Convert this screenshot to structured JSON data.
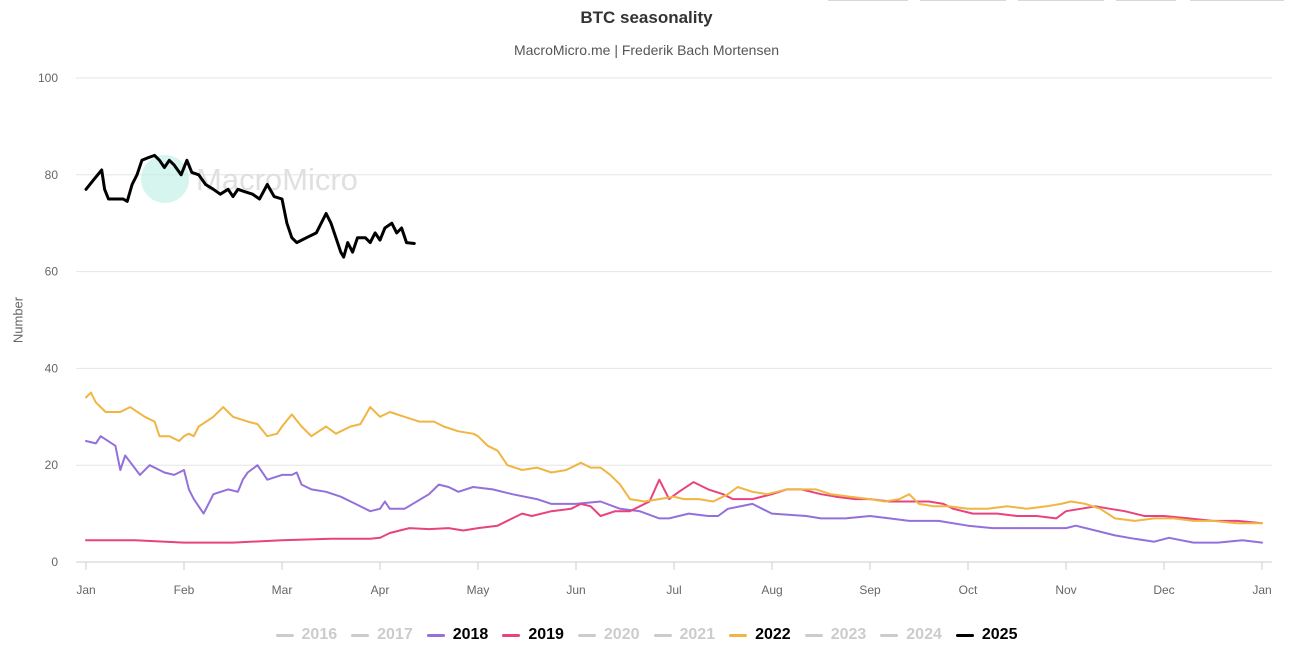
{
  "chart_data": {
    "type": "line",
    "title": "BTC seasonality",
    "subtitle": "MacroMicro.me | Frederik Bach Mortensen",
    "ylabel": "Number",
    "xlabel": "",
    "ylim": [
      0,
      100
    ],
    "yticks": [
      0,
      20,
      40,
      60,
      80,
      100
    ],
    "xticks": [
      "Jan",
      "Feb",
      "Mar",
      "Apr",
      "May",
      "Jun",
      "Jul",
      "Aug",
      "Sep",
      "Oct",
      "Nov",
      "Dec",
      "Jan"
    ],
    "x_domain_months": [
      1,
      13
    ],
    "grid": "horizontal",
    "legend_position": "bottom-center",
    "legend": [
      {
        "name": "2016",
        "color": "#cccccc",
        "active": false
      },
      {
        "name": "2017",
        "color": "#cccccc",
        "active": false
      },
      {
        "name": "2018",
        "color": "#9370db",
        "active": true
      },
      {
        "name": "2019",
        "color": "#e8437d",
        "active": true
      },
      {
        "name": "2020",
        "color": "#cccccc",
        "active": false
      },
      {
        "name": "2021",
        "color": "#cccccc",
        "active": false
      },
      {
        "name": "2022",
        "color": "#f0b542",
        "active": true
      },
      {
        "name": "2023",
        "color": "#cccccc",
        "active": false
      },
      {
        "name": "2024",
        "color": "#cccccc",
        "active": false
      },
      {
        "name": "2025",
        "color": "#000000",
        "active": true
      }
    ],
    "series": [
      {
        "name": "2018",
        "color": "#9370db",
        "width": 2,
        "points": [
          [
            1.0,
            25
          ],
          [
            1.1,
            24.5
          ],
          [
            1.15,
            26
          ],
          [
            1.3,
            24
          ],
          [
            1.35,
            19
          ],
          [
            1.4,
            22
          ],
          [
            1.55,
            18
          ],
          [
            1.65,
            20
          ],
          [
            1.8,
            18.5
          ],
          [
            1.9,
            18
          ],
          [
            2.0,
            19
          ],
          [
            2.05,
            15
          ],
          [
            2.1,
            13
          ],
          [
            2.2,
            10
          ],
          [
            2.3,
            14
          ],
          [
            2.45,
            15
          ],
          [
            2.55,
            14.5
          ],
          [
            2.6,
            17
          ],
          [
            2.65,
            18.5
          ],
          [
            2.75,
            20
          ],
          [
            2.85,
            17
          ],
          [
            3.0,
            18
          ],
          [
            3.1,
            18
          ],
          [
            3.15,
            18.5
          ],
          [
            3.2,
            16
          ],
          [
            3.3,
            15
          ],
          [
            3.45,
            14.5
          ],
          [
            3.6,
            13.5
          ],
          [
            3.75,
            12
          ],
          [
            3.9,
            10.5
          ],
          [
            4.0,
            11
          ],
          [
            4.05,
            12.5
          ],
          [
            4.1,
            11
          ],
          [
            4.25,
            11
          ],
          [
            4.5,
            14
          ],
          [
            4.6,
            16
          ],
          [
            4.7,
            15.5
          ],
          [
            4.8,
            14.5
          ],
          [
            4.95,
            15.5
          ],
          [
            5.15,
            15
          ],
          [
            5.35,
            14
          ],
          [
            5.6,
            13
          ],
          [
            5.75,
            12
          ],
          [
            6.0,
            12
          ],
          [
            6.25,
            12.5
          ],
          [
            6.45,
            11
          ],
          [
            6.65,
            10.5
          ],
          [
            6.85,
            9
          ],
          [
            6.95,
            9
          ],
          [
            7.15,
            10
          ],
          [
            7.35,
            9.5
          ],
          [
            7.45,
            9.5
          ],
          [
            7.55,
            11
          ],
          [
            7.8,
            12
          ],
          [
            7.9,
            11
          ],
          [
            8.0,
            10
          ],
          [
            8.35,
            9.5
          ],
          [
            8.5,
            9
          ],
          [
            8.75,
            9
          ],
          [
            9.0,
            9.5
          ],
          [
            9.2,
            9
          ],
          [
            9.4,
            8.5
          ],
          [
            9.7,
            8.5
          ],
          [
            10.0,
            7.5
          ],
          [
            10.25,
            7
          ],
          [
            10.5,
            7
          ],
          [
            10.75,
            7
          ],
          [
            11.0,
            7
          ],
          [
            11.1,
            7.5
          ],
          [
            11.3,
            6.5
          ],
          [
            11.5,
            5.5
          ],
          [
            11.7,
            4.8
          ],
          [
            11.9,
            4.2
          ],
          [
            12.05,
            5
          ],
          [
            12.3,
            4
          ],
          [
            12.55,
            4
          ],
          [
            12.8,
            4.5
          ],
          [
            13.0,
            4
          ]
        ]
      },
      {
        "name": "2019",
        "color": "#e8437d",
        "width": 2,
        "points": [
          [
            1.0,
            4.5
          ],
          [
            1.5,
            4.5
          ],
          [
            2.0,
            4
          ],
          [
            2.5,
            4
          ],
          [
            3.0,
            4.5
          ],
          [
            3.5,
            4.8
          ],
          [
            3.9,
            4.8
          ],
          [
            4.0,
            5
          ],
          [
            4.1,
            6
          ],
          [
            4.3,
            7
          ],
          [
            4.5,
            6.8
          ],
          [
            4.7,
            7
          ],
          [
            4.85,
            6.5
          ],
          [
            5.0,
            7
          ],
          [
            5.2,
            7.5
          ],
          [
            5.35,
            9
          ],
          [
            5.45,
            10
          ],
          [
            5.55,
            9.5
          ],
          [
            5.75,
            10.5
          ],
          [
            5.95,
            11
          ],
          [
            6.05,
            12
          ],
          [
            6.15,
            11.5
          ],
          [
            6.25,
            9.5
          ],
          [
            6.4,
            10.5
          ],
          [
            6.55,
            10.5
          ],
          [
            6.75,
            12.5
          ],
          [
            6.85,
            17
          ],
          [
            6.95,
            13
          ],
          [
            7.05,
            14.5
          ],
          [
            7.2,
            16.5
          ],
          [
            7.35,
            15
          ],
          [
            7.5,
            14
          ],
          [
            7.6,
            13
          ],
          [
            7.8,
            13
          ],
          [
            8.0,
            14
          ],
          [
            8.15,
            15
          ],
          [
            8.3,
            15
          ],
          [
            8.5,
            14
          ],
          [
            8.65,
            13.5
          ],
          [
            8.85,
            13
          ],
          [
            9.0,
            13
          ],
          [
            9.2,
            12.5
          ],
          [
            9.4,
            12.5
          ],
          [
            9.6,
            12.5
          ],
          [
            9.75,
            12
          ],
          [
            9.85,
            11
          ],
          [
            10.05,
            10
          ],
          [
            10.3,
            10
          ],
          [
            10.5,
            9.5
          ],
          [
            10.7,
            9.5
          ],
          [
            10.9,
            9
          ],
          [
            11.0,
            10.5
          ],
          [
            11.15,
            11
          ],
          [
            11.3,
            11.5
          ],
          [
            11.45,
            11
          ],
          [
            11.6,
            10.5
          ],
          [
            11.8,
            9.5
          ],
          [
            12.0,
            9.5
          ],
          [
            12.25,
            9
          ],
          [
            12.5,
            8.5
          ],
          [
            12.75,
            8.5
          ],
          [
            13.0,
            8
          ]
        ]
      },
      {
        "name": "2022",
        "color": "#f0b542",
        "width": 2,
        "points": [
          [
            1.0,
            34
          ],
          [
            1.05,
            35
          ],
          [
            1.1,
            33
          ],
          [
            1.2,
            31
          ],
          [
            1.35,
            31
          ],
          [
            1.45,
            32
          ],
          [
            1.6,
            30
          ],
          [
            1.7,
            29
          ],
          [
            1.75,
            26
          ],
          [
            1.85,
            26
          ],
          [
            1.95,
            25
          ],
          [
            2.0,
            26
          ],
          [
            2.05,
            26.5
          ],
          [
            2.1,
            26
          ],
          [
            2.15,
            28
          ],
          [
            2.3,
            30
          ],
          [
            2.4,
            32
          ],
          [
            2.5,
            30
          ],
          [
            2.65,
            29
          ],
          [
            2.75,
            28.5
          ],
          [
            2.85,
            26
          ],
          [
            2.95,
            26.5
          ],
          [
            3.0,
            28
          ],
          [
            3.1,
            30.5
          ],
          [
            3.2,
            28
          ],
          [
            3.3,
            26
          ],
          [
            3.45,
            28
          ],
          [
            3.55,
            26.5
          ],
          [
            3.7,
            28
          ],
          [
            3.8,
            28.5
          ],
          [
            3.9,
            32
          ],
          [
            4.0,
            30
          ],
          [
            4.1,
            31
          ],
          [
            4.25,
            30
          ],
          [
            4.4,
            29
          ],
          [
            4.55,
            29
          ],
          [
            4.65,
            28
          ],
          [
            4.8,
            27
          ],
          [
            4.95,
            26.5
          ],
          [
            5.0,
            26
          ],
          [
            5.1,
            24
          ],
          [
            5.2,
            23
          ],
          [
            5.3,
            20
          ],
          [
            5.45,
            19
          ],
          [
            5.6,
            19.5
          ],
          [
            5.75,
            18.5
          ],
          [
            5.9,
            19
          ],
          [
            6.0,
            20
          ],
          [
            6.05,
            20.5
          ],
          [
            6.15,
            19.5
          ],
          [
            6.25,
            19.5
          ],
          [
            6.35,
            18
          ],
          [
            6.45,
            16
          ],
          [
            6.55,
            13
          ],
          [
            6.7,
            12.5
          ],
          [
            6.85,
            13
          ],
          [
            7.0,
            13.5
          ],
          [
            7.1,
            13
          ],
          [
            7.25,
            13
          ],
          [
            7.4,
            12.5
          ],
          [
            7.55,
            14
          ],
          [
            7.65,
            15.5
          ],
          [
            7.8,
            14.5
          ],
          [
            7.95,
            14
          ],
          [
            8.05,
            14.5
          ],
          [
            8.15,
            15
          ],
          [
            8.3,
            15
          ],
          [
            8.45,
            15
          ],
          [
            8.6,
            14
          ],
          [
            8.8,
            13.5
          ],
          [
            9.0,
            13
          ],
          [
            9.15,
            12.5
          ],
          [
            9.3,
            13
          ],
          [
            9.4,
            14
          ],
          [
            9.5,
            12
          ],
          [
            9.65,
            11.5
          ],
          [
            9.8,
            11.5
          ],
          [
            10.0,
            11
          ],
          [
            10.2,
            11
          ],
          [
            10.4,
            11.5
          ],
          [
            10.6,
            11
          ],
          [
            10.8,
            11.5
          ],
          [
            10.95,
            12
          ],
          [
            11.05,
            12.5
          ],
          [
            11.2,
            12
          ],
          [
            11.35,
            11
          ],
          [
            11.5,
            9
          ],
          [
            11.7,
            8.5
          ],
          [
            11.9,
            9
          ],
          [
            12.1,
            9
          ],
          [
            12.3,
            8.5
          ],
          [
            12.5,
            8.5
          ],
          [
            12.75,
            8
          ],
          [
            13.0,
            8
          ]
        ]
      },
      {
        "name": "2025",
        "color": "#000000",
        "width": 3,
        "points": [
          [
            1.0,
            77
          ],
          [
            1.08,
            79
          ],
          [
            1.16,
            81
          ],
          [
            1.19,
            77
          ],
          [
            1.23,
            75
          ],
          [
            1.3,
            75
          ],
          [
            1.38,
            75
          ],
          [
            1.42,
            74.5
          ],
          [
            1.47,
            78
          ],
          [
            1.52,
            80
          ],
          [
            1.57,
            83
          ],
          [
            1.63,
            83.5
          ],
          [
            1.7,
            84
          ],
          [
            1.75,
            83
          ],
          [
            1.8,
            81.5
          ],
          [
            1.85,
            83
          ],
          [
            1.9,
            82
          ],
          [
            1.97,
            80
          ],
          [
            2.03,
            83
          ],
          [
            2.08,
            80.5
          ],
          [
            2.15,
            80
          ],
          [
            2.22,
            78
          ],
          [
            2.3,
            77
          ],
          [
            2.37,
            76
          ],
          [
            2.45,
            77
          ],
          [
            2.5,
            75.5
          ],
          [
            2.55,
            77
          ],
          [
            2.62,
            76.5
          ],
          [
            2.7,
            76
          ],
          [
            2.77,
            75
          ],
          [
            2.85,
            78
          ],
          [
            2.92,
            75.5
          ],
          [
            3.0,
            75
          ],
          [
            3.05,
            70
          ],
          [
            3.1,
            67
          ],
          [
            3.15,
            66
          ],
          [
            3.25,
            67
          ],
          [
            3.35,
            68
          ],
          [
            3.45,
            72
          ],
          [
            3.5,
            70
          ],
          [
            3.55,
            67
          ],
          [
            3.6,
            64
          ],
          [
            3.63,
            63
          ],
          [
            3.67,
            66
          ],
          [
            3.72,
            64
          ],
          [
            3.77,
            67
          ],
          [
            3.85,
            67
          ],
          [
            3.9,
            66
          ],
          [
            3.95,
            68
          ],
          [
            4.0,
            66.5
          ],
          [
            4.05,
            69
          ],
          [
            4.12,
            70
          ],
          [
            4.17,
            68
          ],
          [
            4.22,
            69
          ],
          [
            4.27,
            66
          ],
          [
            4.35,
            65.8
          ]
        ]
      }
    ]
  },
  "watermark": "MacroMicro",
  "top_tabs": [
    "",
    "",
    "",
    "",
    ""
  ]
}
